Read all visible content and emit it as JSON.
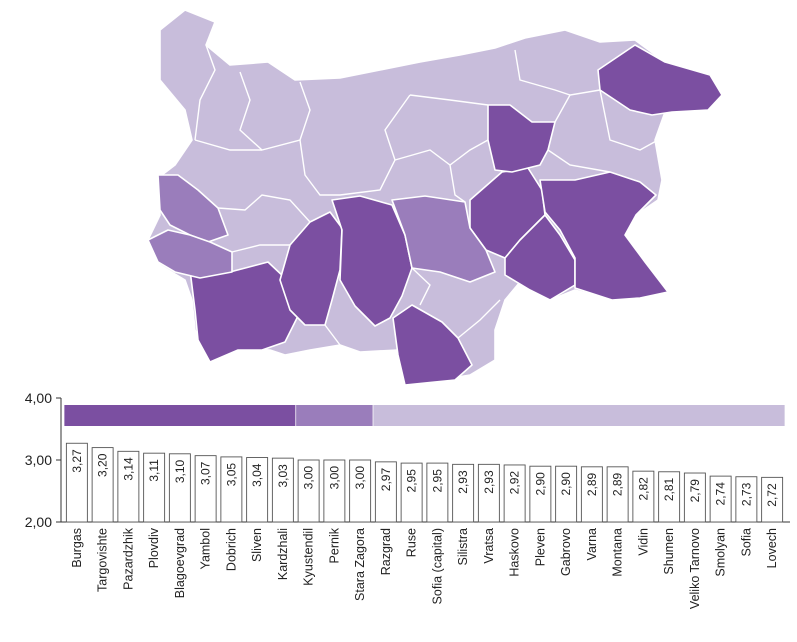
{
  "colors": {
    "dark": "#7b4fa1",
    "medium": "#9a7dbb",
    "light": "#c8bddb",
    "bar_fill": "#ffffff",
    "bar_stroke": "#555555"
  },
  "chart_data": {
    "type": "bar",
    "title": "",
    "xlabel": "",
    "ylabel": "",
    "ylim": [
      2.0,
      4.0
    ],
    "yticks": [
      "2,00",
      "3,00",
      "4,00"
    ],
    "categories": [
      "Burgas",
      "Targovishte",
      "Pazardzhik",
      "Plovdiv",
      "Blagoevgrad",
      "Yambol",
      "Dobrich",
      "Sliven",
      "Kardzhali",
      "Kyustendil",
      "Pernik",
      "Stara Zagora",
      "Razgrad",
      "Ruse",
      "Sofia (capital)",
      "Silistra",
      "Vratsa",
      "Haskovo",
      "Pleven",
      "Gabrovo",
      "Varna",
      "Montana",
      "Vidin",
      "Shumen",
      "Veliko Tarnovo",
      "Smolyan",
      "Sofia",
      "Lovech"
    ],
    "values": [
      3.27,
      3.2,
      3.14,
      3.11,
      3.1,
      3.07,
      3.05,
      3.04,
      3.03,
      3.0,
      3.0,
      3.0,
      2.97,
      2.95,
      2.95,
      2.93,
      2.93,
      2.92,
      2.9,
      2.9,
      2.89,
      2.89,
      2.82,
      2.81,
      2.79,
      2.74,
      2.73,
      2.72
    ],
    "value_labels": [
      "3,27",
      "3,20",
      "3,14",
      "3,11",
      "3,10",
      "3,07",
      "3,05",
      "3,04",
      "3,03",
      "3,00",
      "3,00",
      "3,00",
      "2,97",
      "2,95",
      "2,95",
      "2,93",
      "2,93",
      "2,92",
      "2,90",
      "2,90",
      "2,89",
      "2,89",
      "2,82",
      "2,81",
      "2,79",
      "2,74",
      "2,73",
      "2,72"
    ],
    "groups": [
      {
        "color": "dark",
        "first": 0,
        "last": 8
      },
      {
        "color": "medium",
        "first": 9,
        "last": 11
      },
      {
        "color": "light",
        "first": 12,
        "last": 27
      }
    ]
  }
}
